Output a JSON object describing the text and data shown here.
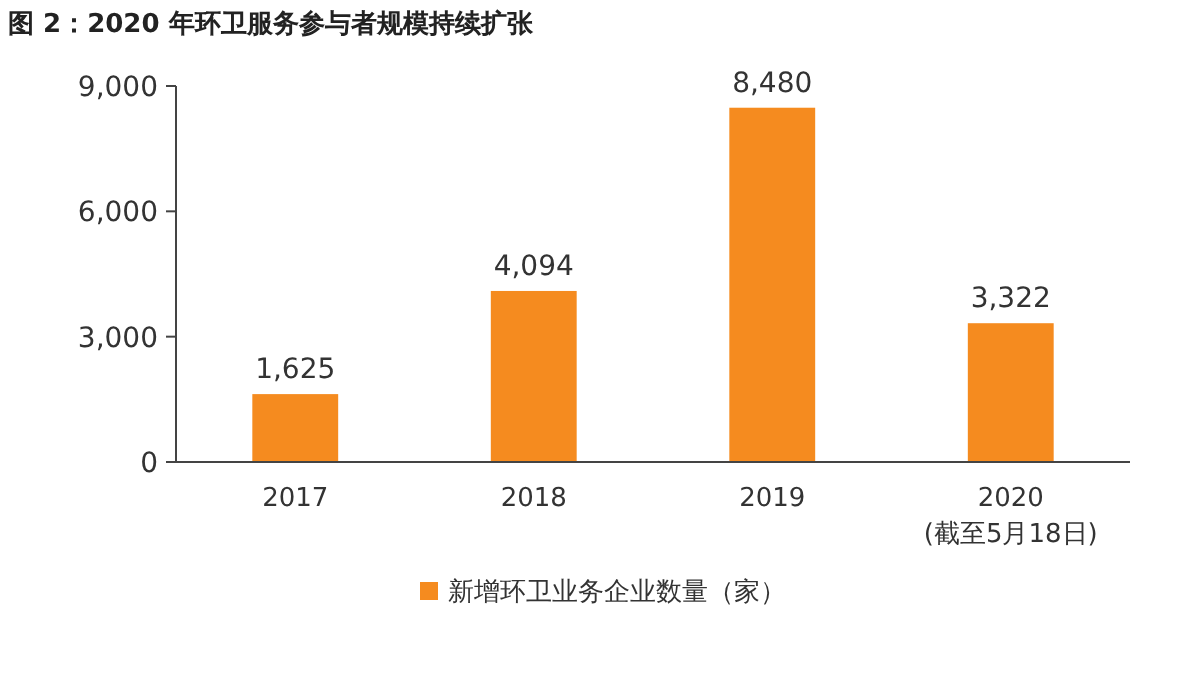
{
  "chart_data": {
    "type": "bar",
    "title": "图 2：2020 年环卫服务参与者规模持续扩张",
    "categories": [
      "2017",
      "2018",
      "2019",
      "2020\n(截至5月18日)"
    ],
    "series": [
      {
        "name": "新增环卫业务企业数量（家）",
        "color": "#f58b1f",
        "values": [
          1625,
          4094,
          8480,
          3322
        ],
        "value_labels": [
          "1,625",
          "4,094",
          "8,480",
          "3,322"
        ]
      }
    ],
    "ylim": [
      0,
      9000
    ],
    "yticks": [
      0,
      {
        "value": 3000,
        "label": "3,000"
      },
      {
        "value": 6000,
        "label": "6,000"
      },
      {
        "value": 9000,
        "label": "9,000"
      }
    ],
    "grid": false,
    "legend": "bottom"
  }
}
